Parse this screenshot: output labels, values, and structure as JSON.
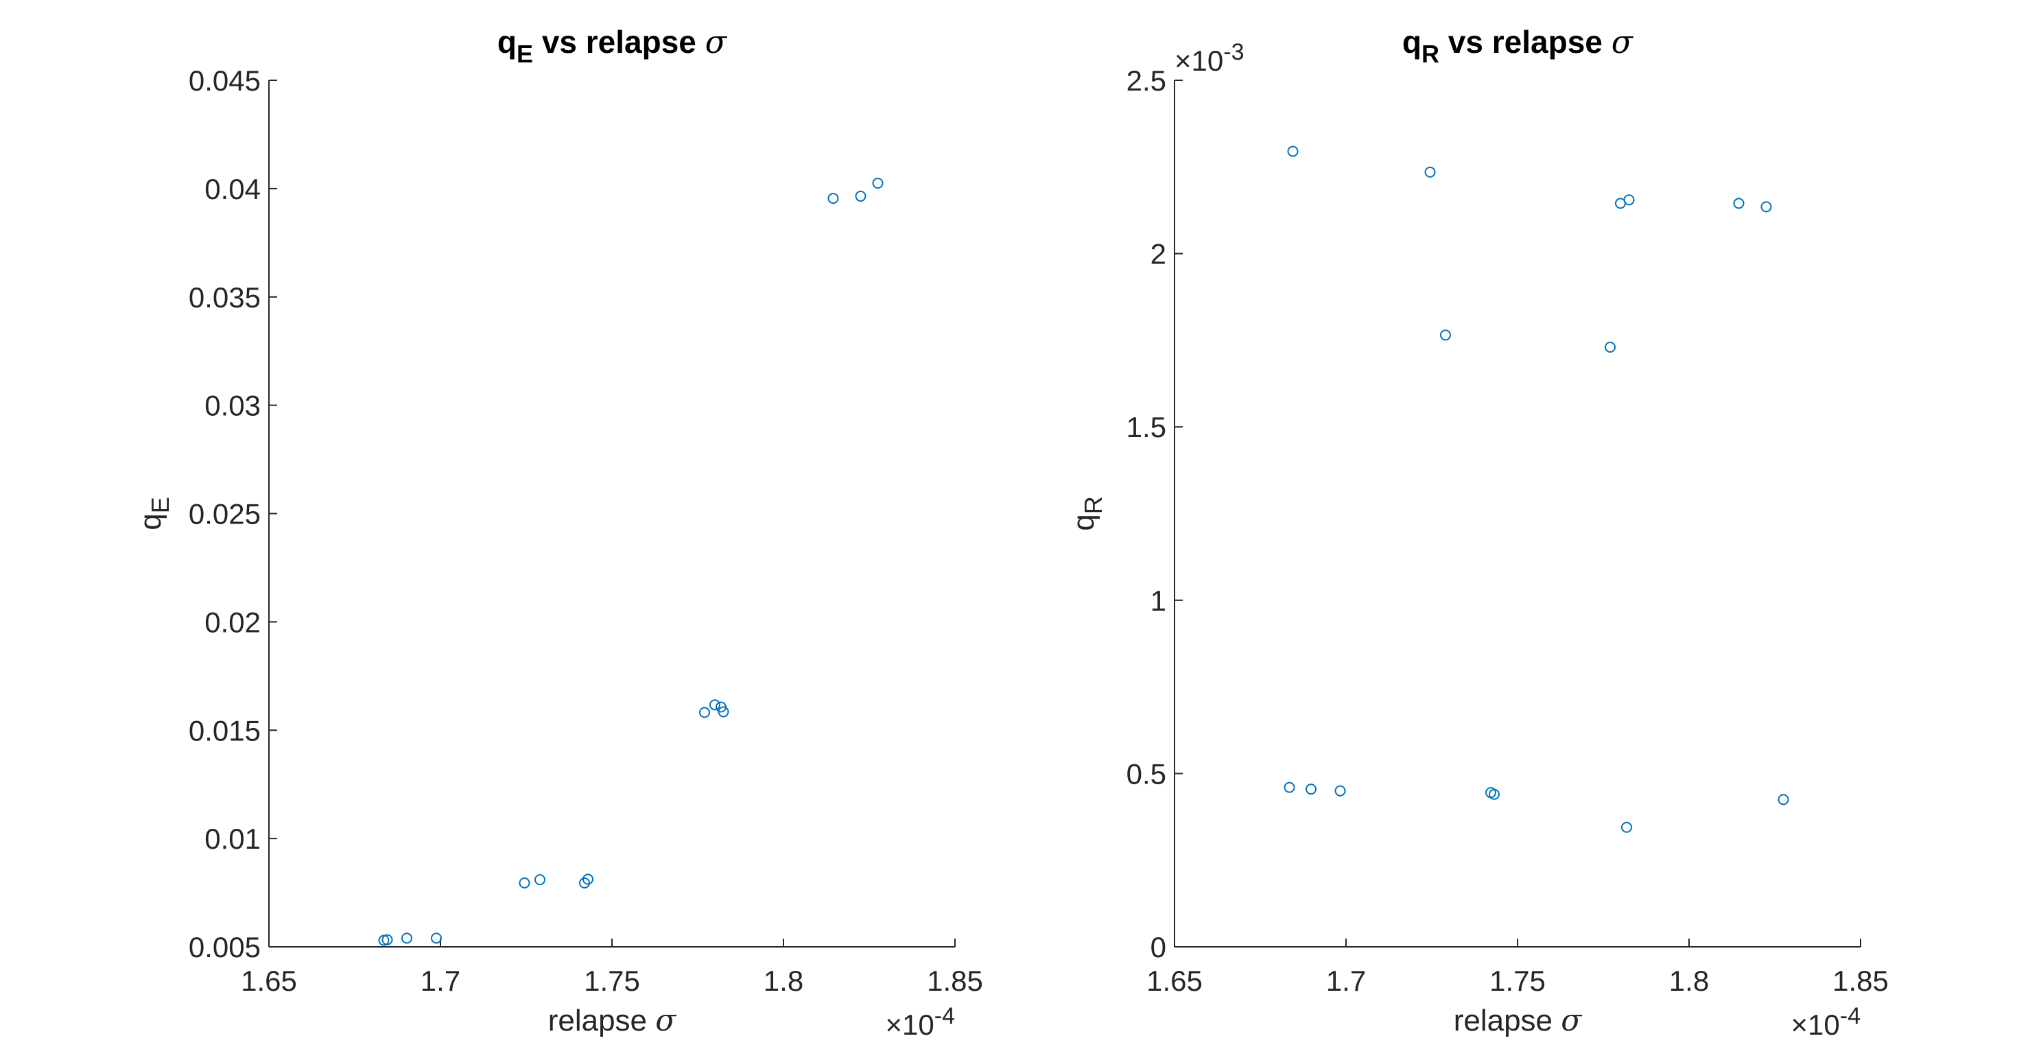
{
  "colors": {
    "marker": "#0072BD",
    "axis": "#262626",
    "title": "#000000",
    "background": "#ffffff"
  },
  "chart_data": [
    {
      "type": "scatter",
      "marker": "open-circle",
      "title": {
        "main": "q",
        "sub": "E",
        "rest": " vs relapse ",
        "symbol": "σ"
      },
      "xlabel": {
        "text": "relapse ",
        "symbol": "σ"
      },
      "ylabel": {
        "main": "q",
        "sub": "E"
      },
      "x_exponent": {
        "prefix": "×10",
        "power": "-4"
      },
      "y_exponent": null,
      "xlim": [
        1.65,
        1.85
      ],
      "ylim": [
        0.005,
        0.045
      ],
      "x_ticks": [
        1.65,
        1.7,
        1.75,
        1.8,
        1.85
      ],
      "x_tick_labels": [
        "1.65",
        "1.7",
        "1.75",
        "1.8",
        "1.85"
      ],
      "y_ticks": [
        0.005,
        0.01,
        0.015,
        0.02,
        0.025,
        0.03,
        0.035,
        0.04,
        0.045
      ],
      "y_tick_labels": [
        "0.005",
        "0.01",
        "0.015",
        "0.02",
        "0.025",
        "0.03",
        "0.035",
        "0.04",
        "0.045"
      ],
      "grid": false,
      "points": [
        {
          "x": 1.6835,
          "y": 0.0053
        },
        {
          "x": 1.6845,
          "y": 0.00533
        },
        {
          "x": 1.6902,
          "y": 0.0054
        },
        {
          "x": 1.6988,
          "y": 0.0054
        },
        {
          "x": 1.7245,
          "y": 0.00795
        },
        {
          "x": 1.729,
          "y": 0.0081
        },
        {
          "x": 1.742,
          "y": 0.00795
        },
        {
          "x": 1.743,
          "y": 0.00812
        },
        {
          "x": 1.777,
          "y": 0.01582
        },
        {
          "x": 1.78,
          "y": 0.01617
        },
        {
          "x": 1.7818,
          "y": 0.01607
        },
        {
          "x": 1.7825,
          "y": 0.01585
        },
        {
          "x": 1.8145,
          "y": 0.03955
        },
        {
          "x": 1.8225,
          "y": 0.03965
        },
        {
          "x": 1.8275,
          "y": 0.04025
        }
      ]
    },
    {
      "type": "scatter",
      "marker": "open-circle",
      "title": {
        "main": "q",
        "sub": "R",
        "rest": " vs relapse ",
        "symbol": "σ"
      },
      "xlabel": {
        "text": "relapse ",
        "symbol": "σ"
      },
      "ylabel": {
        "main": "q",
        "sub": "R"
      },
      "x_exponent": {
        "prefix": "×10",
        "power": "-4"
      },
      "y_exponent": {
        "prefix": "×10",
        "power": "-3"
      },
      "xlim": [
        1.65,
        1.85
      ],
      "ylim": [
        0,
        2.5
      ],
      "x_ticks": [
        1.65,
        1.7,
        1.75,
        1.8,
        1.85
      ],
      "x_tick_labels": [
        "1.65",
        "1.7",
        "1.75",
        "1.8",
        "1.85"
      ],
      "y_ticks": [
        0,
        0.5,
        1,
        1.5,
        2,
        2.5
      ],
      "y_tick_labels": [
        "0",
        "0.5",
        "1",
        "1.5",
        "2",
        "2.5"
      ],
      "grid": false,
      "points": [
        {
          "x": 1.6845,
          "y": 2.295
        },
        {
          "x": 1.7245,
          "y": 2.235
        },
        {
          "x": 1.78,
          "y": 2.145
        },
        {
          "x": 1.7825,
          "y": 2.155
        },
        {
          "x": 1.8145,
          "y": 2.145
        },
        {
          "x": 1.8225,
          "y": 2.135
        },
        {
          "x": 1.729,
          "y": 1.765
        },
        {
          "x": 1.777,
          "y": 1.73
        },
        {
          "x": 1.6835,
          "y": 0.46
        },
        {
          "x": 1.6898,
          "y": 0.455
        },
        {
          "x": 1.6983,
          "y": 0.45
        },
        {
          "x": 1.7422,
          "y": 0.445
        },
        {
          "x": 1.7432,
          "y": 0.44
        },
        {
          "x": 1.7818,
          "y": 0.345
        },
        {
          "x": 1.8275,
          "y": 0.425
        }
      ]
    }
  ]
}
